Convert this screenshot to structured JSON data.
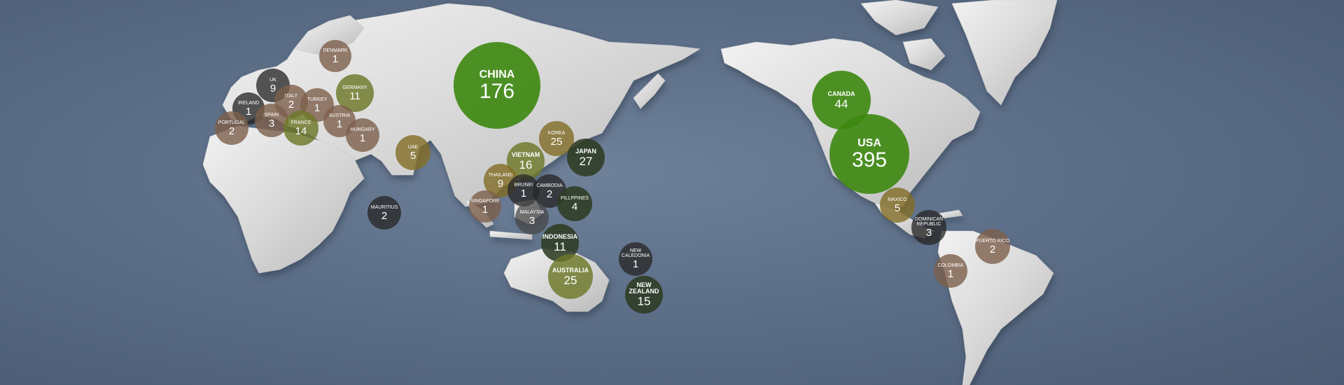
{
  "map": {
    "markers": [
      {
        "id": "china",
        "name": "CHINA",
        "count": "176"
      },
      {
        "id": "usa",
        "name": "USA",
        "count": "395"
      },
      {
        "id": "canada",
        "name": "CANADA",
        "count": "44"
      },
      {
        "id": "denmark",
        "name": "DENMARK",
        "count": "1"
      },
      {
        "id": "uk",
        "name": "UK",
        "count": "9"
      },
      {
        "id": "ireland",
        "name": "IRELAND",
        "count": "1"
      },
      {
        "id": "italy",
        "name": "ITALY",
        "count": "2"
      },
      {
        "id": "turkey",
        "name": "TURKEY",
        "count": "1"
      },
      {
        "id": "germany",
        "name": "GERMANY",
        "count": "11"
      },
      {
        "id": "spain",
        "name": "SPAIN",
        "count": "3"
      },
      {
        "id": "portugal",
        "name": "PORTUGAL",
        "count": "2"
      },
      {
        "id": "france",
        "name": "FRANCE",
        "count": "14"
      },
      {
        "id": "austria",
        "name": "AUSTRIA",
        "count": "1"
      },
      {
        "id": "hungary",
        "name": "HUNGARY",
        "count": "1"
      },
      {
        "id": "uae",
        "name": "UAE",
        "count": "5"
      },
      {
        "id": "mauritius",
        "name": "MAURITIUS",
        "count": "2"
      },
      {
        "id": "korea",
        "name": "KOREA",
        "count": "25"
      },
      {
        "id": "japan",
        "name": "JAPAN",
        "count": "27"
      },
      {
        "id": "vietnam",
        "name": "VIETNAM",
        "count": "16"
      },
      {
        "id": "thailand",
        "name": "THAILAND",
        "count": "9"
      },
      {
        "id": "brunei",
        "name": "BRUNEI",
        "count": "1"
      },
      {
        "id": "cambodia",
        "name": "CAMBODIA",
        "count": "2"
      },
      {
        "id": "singapore",
        "name": "SINGAPORE",
        "count": "1"
      },
      {
        "id": "malaysia",
        "name": "MALAYSIA",
        "count": "3"
      },
      {
        "id": "philippines",
        "name": "PILLPPINES",
        "count": "4"
      },
      {
        "id": "indonesia",
        "name": "INDONESIA",
        "count": "11"
      },
      {
        "id": "australia",
        "name": "AUSTRALIA",
        "count": "25"
      },
      {
        "id": "new-caledonia",
        "name": "NEW CALEDONIA",
        "count": "1"
      },
      {
        "id": "new-zealand",
        "name": "NEW ZEALAND",
        "count": "15"
      },
      {
        "id": "maxico",
        "name": "MAXICO",
        "count": "5"
      },
      {
        "id": "dominican-republic",
        "name": "DOMINICAN REPUBLIC",
        "count": "3"
      },
      {
        "id": "puerto-rico",
        "name": "PUERTO RICO",
        "count": "2"
      },
      {
        "id": "colombia",
        "name": "COLOMBIA",
        "count": "1"
      }
    ]
  }
}
